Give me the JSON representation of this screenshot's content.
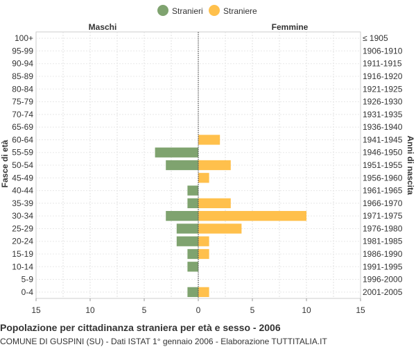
{
  "chart_data": {
    "type": "bar",
    "title": "Popolazione per cittadinanza straniera per età e sesso - 2006",
    "subtitle": "COMUNE DI GUSPINI (SU) - Dati ISTAT 1° gennaio 2006 - Elaborazione TUTTITALIA.IT",
    "left_header": "Maschi",
    "right_header": "Femmine",
    "ylabel_left": "Fasce di età",
    "ylabel_right": "Anni di nascita",
    "xlim": [
      -15,
      15
    ],
    "xticks": [
      -15,
      -10,
      -5,
      0,
      5,
      10,
      15
    ],
    "xtick_labels": [
      "15",
      "10",
      "5",
      "0",
      "5",
      "10",
      "15"
    ],
    "grid": true,
    "legend_position": "top-center",
    "categories": [
      "100+",
      "95-99",
      "90-94",
      "85-89",
      "80-84",
      "75-79",
      "70-74",
      "65-69",
      "60-64",
      "55-59",
      "50-54",
      "45-49",
      "40-44",
      "35-39",
      "30-34",
      "25-29",
      "20-24",
      "15-19",
      "10-14",
      "5-9",
      "0-4"
    ],
    "birth_years": [
      "≤ 1905",
      "1906-1910",
      "1911-1915",
      "1916-1920",
      "1921-1925",
      "1926-1930",
      "1931-1935",
      "1936-1940",
      "1941-1945",
      "1946-1950",
      "1951-1955",
      "1956-1960",
      "1961-1965",
      "1966-1970",
      "1971-1975",
      "1976-1980",
      "1981-1985",
      "1986-1990",
      "1991-1995",
      "1996-2000",
      "2001-2005"
    ],
    "series": [
      {
        "name": "Stranieri",
        "color": "#7fa36f",
        "side": "left",
        "values": [
          0,
          0,
          0,
          0,
          0,
          0,
          0,
          0,
          0,
          4,
          3,
          0,
          1,
          1,
          3,
          2,
          2,
          1,
          1,
          0,
          1
        ]
      },
      {
        "name": "Straniere",
        "color": "#ffc04c",
        "side": "right",
        "values": [
          0,
          0,
          0,
          0,
          0,
          0,
          0,
          0,
          2,
          0,
          3,
          1,
          0,
          3,
          10,
          4,
          1,
          1,
          0,
          0,
          1
        ]
      }
    ]
  }
}
